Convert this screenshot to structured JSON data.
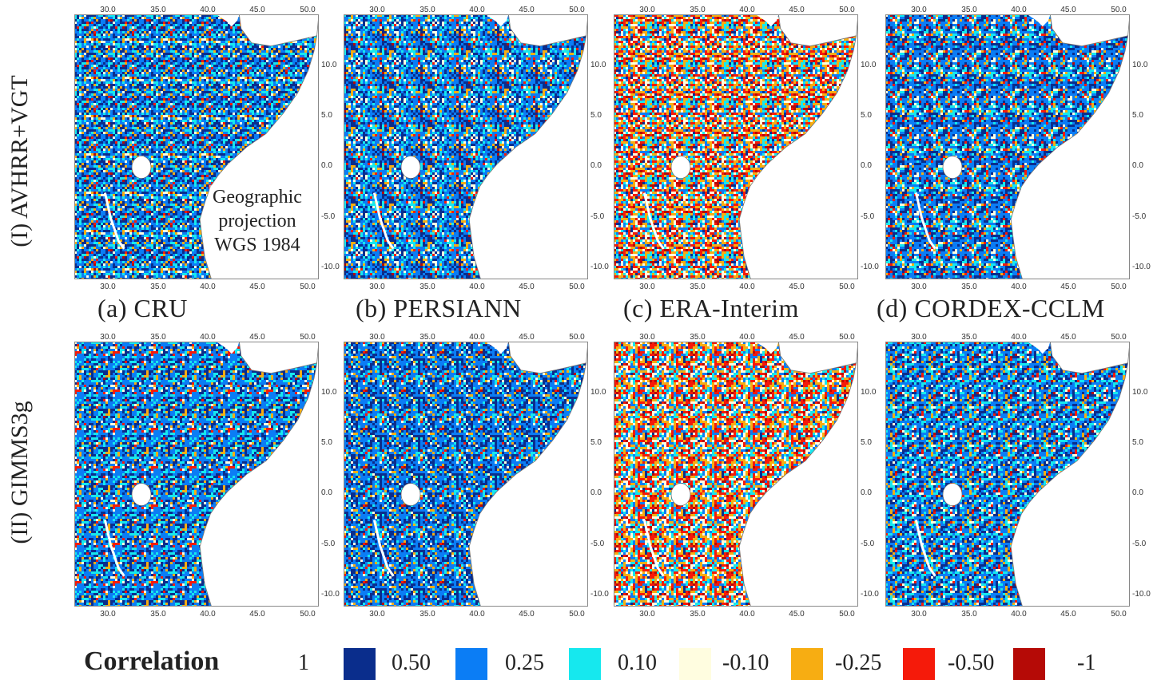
{
  "row_labels": [
    "(I) AVHRR+VGT",
    "(II) GIMMS3g"
  ],
  "captions": [
    "(a) CRU",
    "(b) PERSIANN",
    "(c) ERA-Interim",
    "(d) CORDEX-CCLM"
  ],
  "projection_note": [
    "Geographic",
    "projection",
    "WGS 1984"
  ],
  "x_ticks": [
    "30.0",
    "35.0",
    "40.0",
    "45.0",
    "50.0"
  ],
  "y_ticks": [
    "10.0",
    "5.0",
    "0.0",
    "-5.0",
    "-10.0"
  ],
  "legend": {
    "title": "Correlation",
    "labels": [
      "1",
      "0.50",
      "0.25",
      "0.10",
      "-0.10",
      "-0.25",
      "-0.50",
      "-1"
    ],
    "colors": [
      "#0a2d8c",
      "#0b7df5",
      "#16e8ee",
      "#fffde0",
      "#f7ad12",
      "#f51a0a",
      "#b50a06"
    ]
  },
  "map_data": {
    "extent": {
      "lon": [
        26,
        51.5
      ],
      "lat": [
        -12,
        14
      ]
    },
    "panels": [
      {
        "id": "I-a",
        "dataset": "CRU",
        "ndvi": "AVHRR+VGT",
        "dominant": "blue"
      },
      {
        "id": "I-b",
        "dataset": "PERSIANN",
        "ndvi": "AVHRR+VGT",
        "dominant": "blue"
      },
      {
        "id": "I-c",
        "dataset": "ERA-Interim",
        "ndvi": "AVHRR+VGT",
        "dominant": "orange-red"
      },
      {
        "id": "I-d",
        "dataset": "CORDEX-CCLM",
        "ndvi": "AVHRR+VGT",
        "dominant": "blue"
      },
      {
        "id": "II-a",
        "dataset": "CRU",
        "ndvi": "GIMMS3g",
        "dominant": "blue"
      },
      {
        "id": "II-b",
        "dataset": "PERSIANN",
        "ndvi": "GIMMS3g",
        "dominant": "blue"
      },
      {
        "id": "II-c",
        "dataset": "ERA-Interim",
        "ndvi": "GIMMS3g",
        "dominant": "orange-red"
      },
      {
        "id": "II-d",
        "dataset": "CORDEX-CCLM",
        "ndvi": "GIMMS3g",
        "dominant": "blue"
      }
    ]
  }
}
